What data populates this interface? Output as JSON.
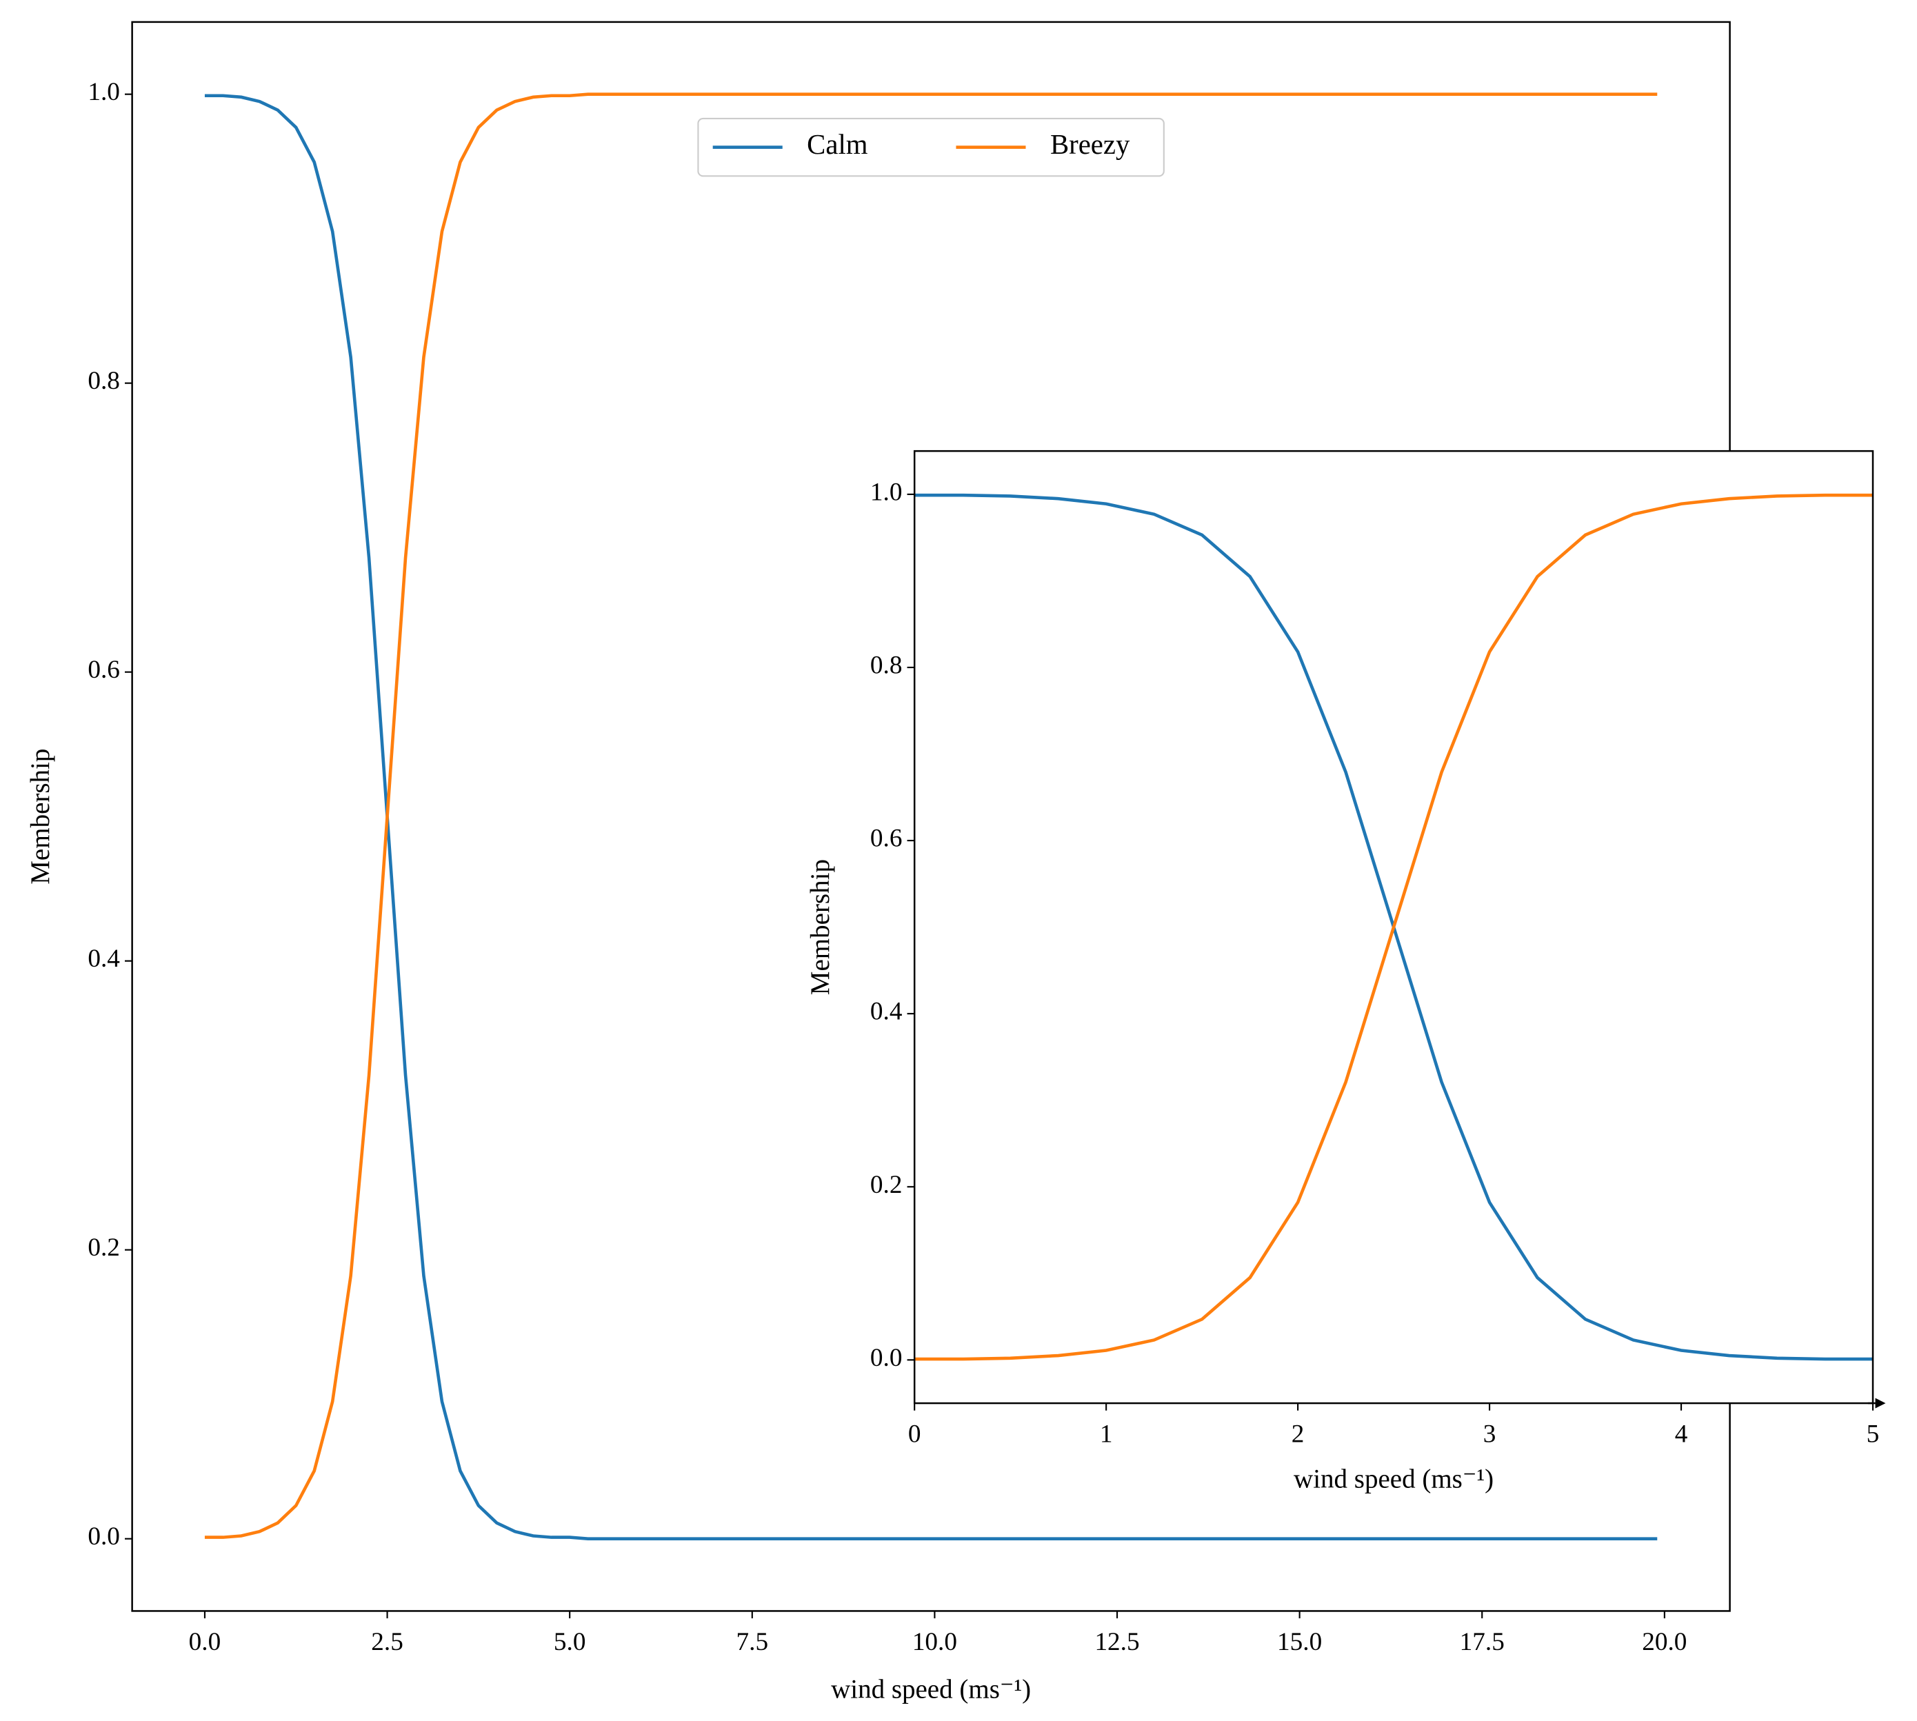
{
  "chart_data": [
    {
      "type": "line",
      "x": [
        0,
        0.25,
        0.5,
        0.75,
        1,
        1.25,
        1.5,
        1.75,
        2,
        2.25,
        2.5,
        2.75,
        3,
        3.25,
        3.5,
        3.75,
        4,
        4.25,
        4.5,
        4.75,
        5,
        5.25,
        5.5,
        5.75,
        6,
        8,
        10,
        12,
        14,
        16,
        18,
        19.9
      ],
      "series": [
        {
          "name": "Calm",
          "color": "#1f77b4",
          "values": [
            0.999,
            0.999,
            0.998,
            0.995,
            0.989,
            0.977,
            0.953,
            0.905,
            0.818,
            0.679,
            0.5,
            0.321,
            0.182,
            0.095,
            0.047,
            0.023,
            0.011,
            0.005,
            0.002,
            0.001,
            0.001,
            0,
            0,
            0,
            0,
            0,
            0,
            0,
            0,
            0,
            0,
            0
          ]
        },
        {
          "name": "Breezy",
          "color": "#ff7f0e",
          "values": [
            0.001,
            0.001,
            0.002,
            0.005,
            0.011,
            0.023,
            0.047,
            0.095,
            0.182,
            0.321,
            0.5,
            0.679,
            0.818,
            0.905,
            0.953,
            0.977,
            0.989,
            0.995,
            0.998,
            0.999,
            0.999,
            1,
            1,
            1,
            1,
            1,
            1,
            1,
            1,
            1,
            1,
            1
          ]
        }
      ],
      "xlabel": "wind speed (ms⁻¹)",
      "ylabel": "Membership",
      "xlim": [
        -0.995,
        20.895
      ],
      "ylim": [
        -0.05,
        1.05
      ],
      "xticks": [
        {
          "value": 0,
          "label": "0.0"
        },
        2.5,
        {
          "value": 5,
          "label": "5.0"
        },
        7.5,
        {
          "value": 10,
          "label": "10.0"
        },
        12.5,
        {
          "value": 15,
          "label": "15.0"
        },
        17.5,
        {
          "value": 20,
          "label": "20.0"
        }
      ],
      "yticks": [
        {
          "value": 0,
          "label": "0.0"
        },
        0.2,
        0.4,
        0.6,
        0.8,
        {
          "value": 1,
          "label": "1.0"
        }
      ],
      "legend": "upper center"
    },
    {
      "type": "line",
      "x": [
        0,
        0.25,
        0.5,
        0.75,
        1,
        1.25,
        1.5,
        1.75,
        2,
        2.25,
        2.5,
        2.75,
        3,
        3.25,
        3.5,
        3.75,
        4,
        4.25,
        4.5,
        4.75,
        5
      ],
      "series": [
        {
          "name": "Calm",
          "color": "#1f77b4",
          "values": [
            0.999,
            0.999,
            0.998,
            0.995,
            0.989,
            0.977,
            0.953,
            0.905,
            0.818,
            0.679,
            0.5,
            0.321,
            0.182,
            0.095,
            0.047,
            0.023,
            0.011,
            0.005,
            0.002,
            0.001,
            0.001
          ]
        },
        {
          "name": "Breezy",
          "color": "#ff7f0e",
          "values": [
            0.001,
            0.001,
            0.002,
            0.005,
            0.011,
            0.023,
            0.047,
            0.095,
            0.182,
            0.321,
            0.5,
            0.679,
            0.818,
            0.905,
            0.953,
            0.977,
            0.989,
            0.995,
            0.998,
            0.999,
            0.999
          ]
        }
      ],
      "xlabel": "wind speed (ms⁻¹)",
      "ylabel": "Membership",
      "xlim": [
        0,
        5
      ],
      "ylim": [
        -0.05,
        1.05
      ],
      "xticks": [
        0,
        1,
        2,
        3,
        4,
        5
      ],
      "yticks": [
        {
          "value": 0,
          "label": "0.0"
        },
        0.2,
        0.4,
        0.6,
        0.8,
        {
          "value": 1,
          "label": "1.0"
        }
      ]
    }
  ]
}
